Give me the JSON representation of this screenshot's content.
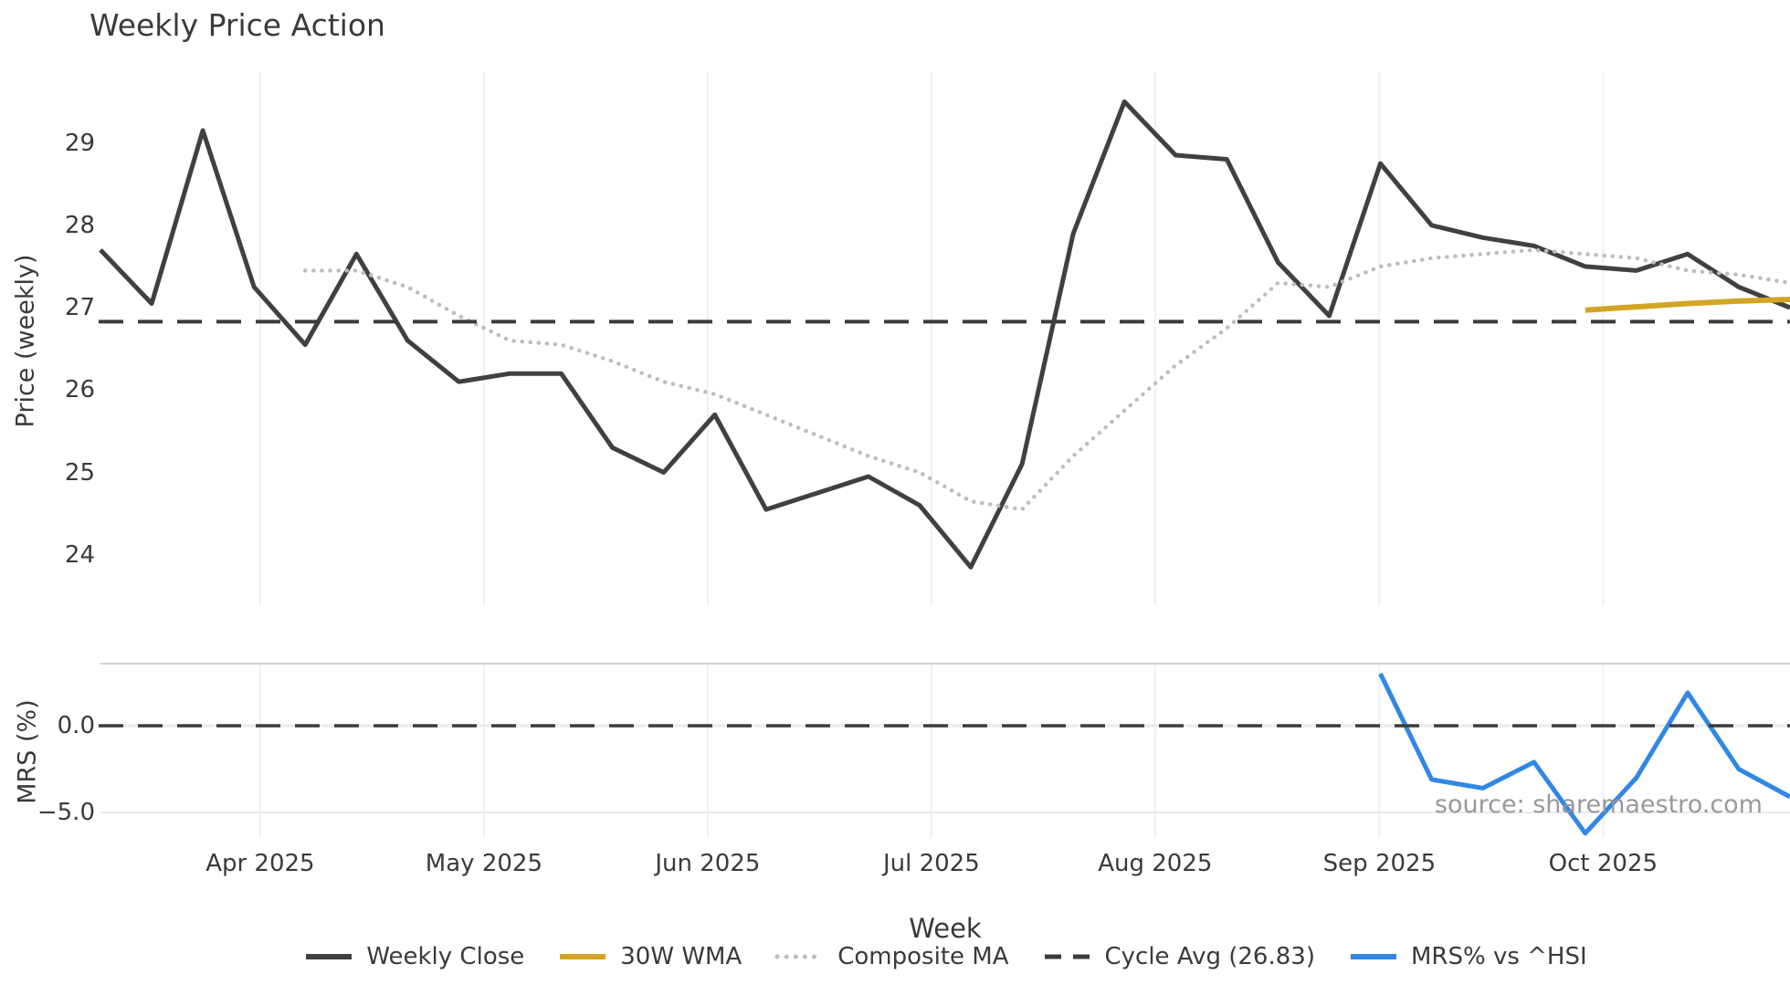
{
  "title": "Weekly Price Action",
  "source_note": "source: sharemaestro.com",
  "xlabel": "Week",
  "price_panel": {
    "ylabel": "Price (weekly)",
    "ytick_values": [
      29,
      28,
      27,
      26,
      25,
      24
    ]
  },
  "mrs_panel": {
    "ylabel": "MRS (%)",
    "ytick_labels": [
      "0.0",
      "−5.0"
    ],
    "ytick_values": [
      0,
      -5
    ]
  },
  "months": [
    {
      "label": "Apr 2025",
      "week": 4.12
    },
    {
      "label": "May 2025",
      "week": 8.49
    },
    {
      "label": "Jun 2025",
      "week": 12.86
    },
    {
      "label": "Jul 2025",
      "week": 17.23
    },
    {
      "label": "Aug 2025",
      "week": 21.6
    },
    {
      "label": "Sep 2025",
      "week": 25.98
    },
    {
      "label": "Oct 2025",
      "week": 30.35
    }
  ],
  "legend": [
    {
      "label": "Weekly Close",
      "style": "solid",
      "color": "#404043"
    },
    {
      "label": "30W WMA",
      "style": "solid",
      "color": "#d4a423"
    },
    {
      "label": "Composite MA",
      "style": "dotted",
      "color": "#bdbdbd"
    },
    {
      "label": "Cycle Avg (26.83)",
      "style": "dashed",
      "color": "#3b3b3f"
    },
    {
      "label": "MRS% vs ^HSI",
      "style": "solid",
      "color": "#3287e4"
    }
  ],
  "chart_data": [
    {
      "type": "line",
      "panel": "price",
      "title": "Weekly Price Action",
      "xlabel": "Week",
      "ylabel": "Price (weekly)",
      "ylim": [
        23.4,
        29.9
      ],
      "x_unit": "week_index",
      "x_tick_labels": [
        "Apr 2025",
        "May 2025",
        "Jun 2025",
        "Jul 2025",
        "Aug 2025",
        "Sep 2025",
        "Oct 2025"
      ],
      "grid": "vertical-monthly",
      "legend_position": "bottom-center",
      "series": [
        {
          "name": "Weekly Close",
          "style": "solid",
          "color": "#404043",
          "width": 5,
          "start_week": 1,
          "values": [
            27.7,
            27.05,
            29.15,
            27.25,
            26.55,
            27.65,
            26.6,
            26.1,
            26.2,
            26.2,
            25.3,
            25.0,
            25.7,
            24.55,
            24.75,
            24.95,
            24.6,
            23.85,
            25.1,
            27.9,
            29.5,
            28.85,
            28.8,
            27.55,
            26.9,
            28.75,
            28.0,
            27.85,
            27.75,
            27.5,
            27.45,
            27.65,
            27.25,
            27.0
          ]
        },
        {
          "name": "30W WMA",
          "style": "solid",
          "color": "#d4a423",
          "width": 6,
          "start_week": 30,
          "values": [
            26.97,
            27.01,
            27.05,
            27.08,
            27.1
          ]
        },
        {
          "name": "Composite MA",
          "style": "dotted",
          "color": "#bdbdbd",
          "width": 4.5,
          "start_week": 5,
          "values": [
            27.45,
            27.45,
            27.25,
            26.9,
            26.6,
            26.55,
            26.35,
            26.1,
            25.95,
            25.7,
            25.45,
            25.2,
            25.0,
            24.65,
            24.55,
            25.2,
            25.75,
            26.3,
            26.75,
            27.3,
            27.25,
            27.5,
            27.6,
            27.65,
            27.7,
            27.65,
            27.6,
            27.45,
            27.4,
            27.3
          ]
        },
        {
          "name": "Cycle Avg (26.83)",
          "style": "dashed",
          "color": "#3b3b3f",
          "width": 4,
          "hline": 26.83
        }
      ]
    },
    {
      "type": "line",
      "panel": "mrs",
      "ylabel": "MRS (%)",
      "ylim": [
        -6.5,
        3.6
      ],
      "series": [
        {
          "name": "MRS% vs ^HSI",
          "style": "solid",
          "color": "#3287e4",
          "width": 5,
          "start_week": 26,
          "values": [
            3.0,
            -3.1,
            -3.6,
            -2.1,
            -6.2,
            -3.0,
            1.9,
            -2.5,
            -4.1
          ]
        },
        {
          "name": "zero-line",
          "style": "dashed",
          "color": "#3b3b3f",
          "width": 3.5,
          "hline": 0
        }
      ]
    }
  ],
  "colors": {
    "vertical_grid": "#eef0f2",
    "mrs_horizontal_grid": "#e8eaf0",
    "mrs_top_border": "#cdced4",
    "text": "#3a3a3a",
    "source_text": "#98989d"
  }
}
